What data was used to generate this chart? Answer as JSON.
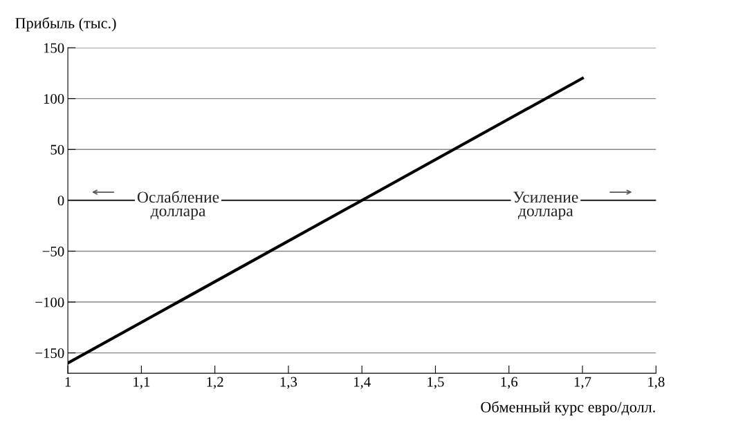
{
  "chart_data": {
    "type": "line",
    "xlabel": "Обменный курс евро/долл.",
    "ylabel": "Прибыль (тыс.)",
    "series": [
      {
        "x": [
          1,
          1.7
        ],
        "values": [
          -160,
          120
        ],
        "color": "#000000"
      }
    ],
    "xlim": [
      1,
      1.8
    ],
    "ylim": [
      -170,
      150
    ],
    "xticks": [
      1,
      {
        "value": 1.1,
        "label": "1,1"
      },
      {
        "value": 1.2,
        "label": "1,2"
      },
      {
        "value": 1.3,
        "label": "1,3"
      },
      {
        "value": 1.4,
        "label": "1,4"
      },
      {
        "value": 1.5,
        "label": "1,5"
      },
      {
        "value": 1.6,
        "label": "1,6"
      },
      {
        "value": 1.7,
        "label": "1,7"
      },
      {
        "value": 1.8,
        "label": "1,8"
      }
    ],
    "yticks": [
      -150,
      -100,
      -50,
      0,
      50,
      100,
      150
    ],
    "grid": "y",
    "ref_lines": [
      {
        "axis": "y",
        "value": 0,
        "color": "#333333"
      }
    ],
    "annotations": [
      {
        "text": "Ослабление\nдоллара",
        "x": 1.15,
        "y": 0
      },
      {
        "text": "Усиление\nдоллара",
        "x": 1.65,
        "y": 0
      }
    ],
    "legend": false,
    "marker": "none",
    "line_style": "solid"
  }
}
